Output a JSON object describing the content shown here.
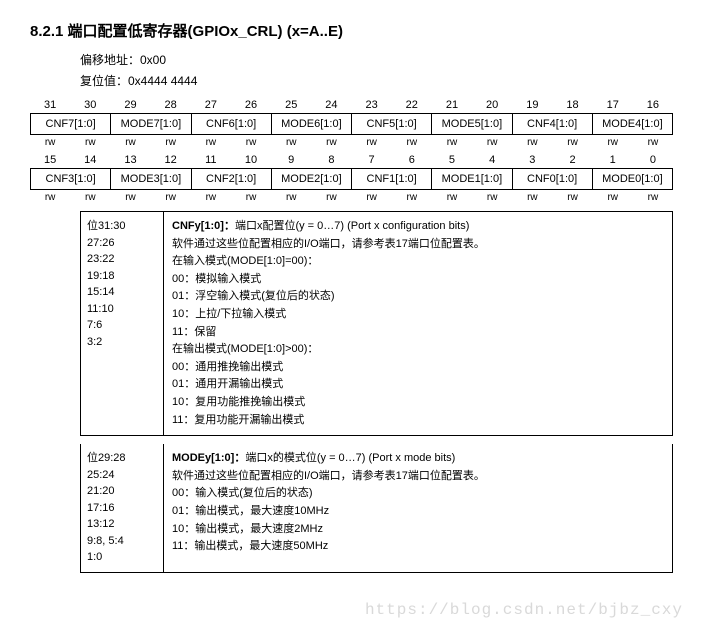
{
  "heading": "8.2.1    端口配置低寄存器(GPIOx_CRL) (x=A..E)",
  "meta": {
    "offset": "偏移地址：0x00",
    "reset": "复位值：0x4444 4444"
  },
  "bits_hi": [
    "31",
    "30",
    "29",
    "28",
    "27",
    "26",
    "25",
    "24",
    "23",
    "22",
    "21",
    "20",
    "19",
    "18",
    "17",
    "16"
  ],
  "fields_hi": [
    "CNF7[1:0]",
    "MODE7[1:0]",
    "CNF6[1:0]",
    "MODE6[1:0]",
    "CNF5[1:0]",
    "MODE5[1:0]",
    "CNF4[1:0]",
    "MODE4[1:0]"
  ],
  "rw_hi": [
    "rw",
    "rw",
    "rw",
    "rw",
    "rw",
    "rw",
    "rw",
    "rw",
    "rw",
    "rw",
    "rw",
    "rw",
    "rw",
    "rw",
    "rw",
    "rw"
  ],
  "bits_lo": [
    "15",
    "14",
    "13",
    "12",
    "11",
    "10",
    "9",
    "8",
    "7",
    "6",
    "5",
    "4",
    "3",
    "2",
    "1",
    "0"
  ],
  "fields_lo": [
    "CNF3[1:0]",
    "MODE3[1:0]",
    "CNF2[1:0]",
    "MODE2[1:0]",
    "CNF1[1:0]",
    "MODE1[1:0]",
    "CNF0[1:0]",
    "MODE0[1:0]"
  ],
  "rw_lo": [
    "rw",
    "rw",
    "rw",
    "rw",
    "rw",
    "rw",
    "rw",
    "rw",
    "rw",
    "rw",
    "rw",
    "rw",
    "rw",
    "rw",
    "rw",
    "rw"
  ],
  "cnfy": {
    "bitlist": [
      "位31:30",
      "27:26",
      "23:22",
      "19:18",
      "15:14",
      "11:10",
      "7:6",
      "3:2"
    ],
    "title": "CNFy[1:0]：端口x配置位(y = 0…7) (Port x configuration bits)",
    "lines": [
      "软件通过这些位配置相应的I/O端口，请参考表17端口位配置表。",
      "在输入模式(MODE[1:0]=00)：",
      "00：模拟输入模式",
      "01：浮空输入模式(复位后的状态)",
      "10：上拉/下拉输入模式",
      "11：保留",
      "在输出模式(MODE[1:0]>00)：",
      "00：通用推挽输出模式",
      "01：通用开漏输出模式",
      "10：复用功能推挽输出模式",
      "11：复用功能开漏输出模式"
    ]
  },
  "modey": {
    "bitlist": [
      "位29:28",
      "25:24",
      "21:20",
      "17:16",
      "13:12",
      "9:8, 5:4",
      "1:0"
    ],
    "title": "MODEy[1:0]：端口x的模式位(y = 0…7) (Port x mode bits)",
    "lines": [
      "软件通过这些位配置相应的I/O端口，请参考表17端口位配置表。",
      "00：输入模式(复位后的状态)",
      "01：输出模式，最大速度10MHz",
      "10：输出模式，最大速度2MHz",
      "11：输出模式，最大速度50MHz"
    ]
  },
  "watermark": "https://blog.csdn.net/bjbz_cxy"
}
